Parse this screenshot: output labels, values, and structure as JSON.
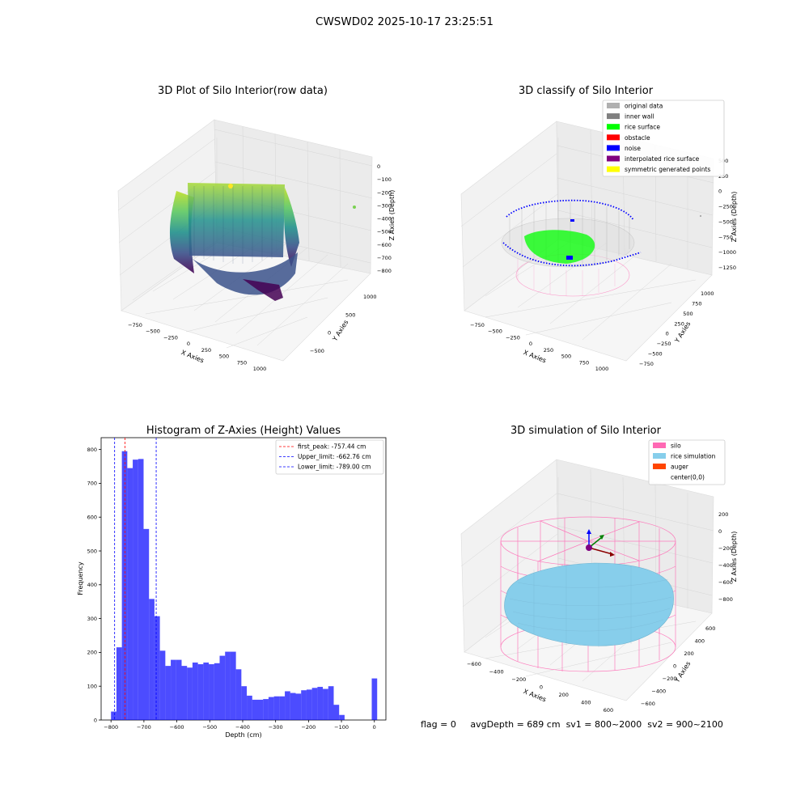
{
  "figure": {
    "title": "CWSWD02 2025-10-17 23:25:51"
  },
  "colors": {
    "orig": "#b0b0b0",
    "wall": "#808080",
    "rice": "#00ff00",
    "obstacle": "#ff0000",
    "noise": "#0000ff",
    "interp": "#800080",
    "sym": "#ffff00",
    "silo": "#ff69b4",
    "ricesim": "#87ceeb",
    "auger": "#ff4500",
    "hist_bar": "#0000ff",
    "peak_line": "#ff0000",
    "limit_line": "#0000ff"
  },
  "panels": {
    "raw": {
      "title": "3D Plot of Silo Interior(row data)",
      "xlabel": "X Axies",
      "ylabel": "Y Axies",
      "zlabel": "Z Axies (Depth)",
      "xticks": [
        "−750",
        "−500",
        "−250",
        "0",
        "250",
        "500",
        "750",
        "1000"
      ],
      "yticks": [
        "−500",
        "0",
        "500",
        "1000"
      ],
      "zticks": [
        "0",
        "−100",
        "−200",
        "−300",
        "−400",
        "−500",
        "−600",
        "−700",
        "−800"
      ]
    },
    "classify": {
      "title": "3D classify of Silo Interior",
      "xlabel": "X Axies",
      "ylabel": "Y Axies",
      "zlabel": "Z Axies (Depth)",
      "xticks": [
        "−750",
        "−500",
        "−250",
        "0",
        "250",
        "500",
        "750",
        "1000"
      ],
      "yticks": [
        "−750",
        "−500",
        "−250",
        "0",
        "250",
        "500",
        "750",
        "1000"
      ],
      "zticks": [
        "500",
        "250",
        "0",
        "−250",
        "−500",
        "−750",
        "−1000",
        "−1250"
      ],
      "legend": [
        "original data",
        "inner wall",
        "rice surface",
        "obstacle",
        "noise",
        "interpolated rice surface",
        "symmetric generated points"
      ]
    },
    "sim": {
      "title": "3D simulation of Silo Interior",
      "xlabel": "X Axies",
      "ylabel": "Y Axies",
      "zlabel": "Z Axies (Depth)",
      "xticks": [
        "−600",
        "−400",
        "−200",
        "0",
        "200",
        "400",
        "600"
      ],
      "yticks": [
        "−600",
        "−400",
        "−200",
        "0",
        "200",
        "400",
        "600"
      ],
      "zticks": [
        "200",
        "0",
        "−200",
        "−400",
        "−600",
        "−800"
      ],
      "legend": [
        "silo",
        "rice simulation",
        "auger",
        "center(0,0)"
      ]
    }
  },
  "chart_data": {
    "type": "bar",
    "title": "Histogram of Z-Axies (Height) Values",
    "xlabel": "Depth (cm)",
    "ylabel": "Frequency",
    "xlim": [
      -830,
      35
    ],
    "ylim": [
      0,
      835
    ],
    "xticks": [
      -800,
      -700,
      -600,
      -500,
      -400,
      -300,
      -200,
      -100,
      0
    ],
    "yticks": [
      0,
      100,
      200,
      300,
      400,
      500,
      600,
      700,
      800
    ],
    "bin_width": 16.5,
    "bins": [
      {
        "x": -800,
        "v": 25
      },
      {
        "x": -783.5,
        "v": 215
      },
      {
        "x": -767,
        "v": 795
      },
      {
        "x": -750.5,
        "v": 745
      },
      {
        "x": -734,
        "v": 770
      },
      {
        "x": -717.5,
        "v": 772
      },
      {
        "x": -701,
        "v": 565
      },
      {
        "x": -684.5,
        "v": 358
      },
      {
        "x": -668,
        "v": 307
      },
      {
        "x": -651.5,
        "v": 205
      },
      {
        "x": -635,
        "v": 160
      },
      {
        "x": -618.5,
        "v": 178
      },
      {
        "x": -602,
        "v": 178
      },
      {
        "x": -585.5,
        "v": 160
      },
      {
        "x": -569,
        "v": 155
      },
      {
        "x": -552.5,
        "v": 170
      },
      {
        "x": -536,
        "v": 165
      },
      {
        "x": -519.5,
        "v": 170
      },
      {
        "x": -503,
        "v": 165
      },
      {
        "x": -486.5,
        "v": 168
      },
      {
        "x": -470,
        "v": 190
      },
      {
        "x": -453.5,
        "v": 202
      },
      {
        "x": -437,
        "v": 202
      },
      {
        "x": -420.5,
        "v": 150
      },
      {
        "x": -404,
        "v": 100
      },
      {
        "x": -387.5,
        "v": 72
      },
      {
        "x": -371,
        "v": 60
      },
      {
        "x": -354.5,
        "v": 60
      },
      {
        "x": -338,
        "v": 62
      },
      {
        "x": -321.5,
        "v": 68
      },
      {
        "x": -305,
        "v": 70
      },
      {
        "x": -288.5,
        "v": 70
      },
      {
        "x": -272,
        "v": 85
      },
      {
        "x": -255.5,
        "v": 80
      },
      {
        "x": -239,
        "v": 78
      },
      {
        "x": -222.5,
        "v": 88
      },
      {
        "x": -206,
        "v": 90
      },
      {
        "x": -189.5,
        "v": 95
      },
      {
        "x": -173,
        "v": 98
      },
      {
        "x": -156.5,
        "v": 92
      },
      {
        "x": -140,
        "v": 100
      },
      {
        "x": -123.5,
        "v": 45
      },
      {
        "x": -107,
        "v": 15
      },
      {
        "x": -8,
        "v": 123
      }
    ],
    "lines": [
      {
        "label": "first_peak: -757.44 cm",
        "x": -757.44,
        "style": "peak"
      },
      {
        "label": "Upper_limit: -662.76 cm",
        "x": -662.76,
        "style": "limit"
      },
      {
        "label": "Lower_limit: -789.00 cm",
        "x": -789.0,
        "style": "limit"
      }
    ],
    "legend_position": "upper right"
  },
  "footer": {
    "flag": "flag = 0",
    "avg": "avgDepth = 689 cm",
    "sv1": "sv1 = 800~2000",
    "sv2": "sv2 = 900~2100"
  }
}
